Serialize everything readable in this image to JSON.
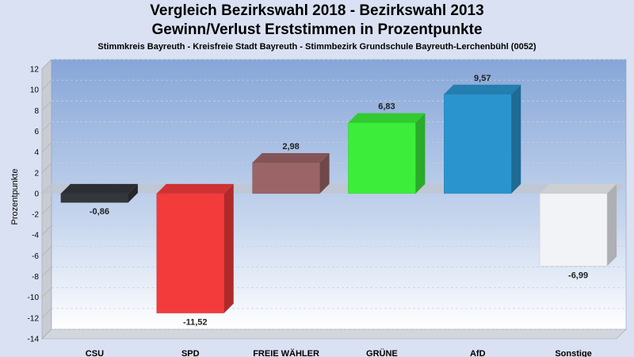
{
  "chart_data": {
    "type": "bar",
    "title": "Vergleich Bezirkswahl 2018 - Bezirkswahl 2013",
    "subtitle": "Gewinn/Verlust Erststimmen in Prozentpunkte",
    "subsubtitle": "Stimmkreis Bayreuth - Kreisfreie Stadt Bayreuth - Stimmbezirk Grundschule Bayreuth-Lerchenbühl (0052)",
    "ylabel": "Prozentpunkte",
    "xlabel": "",
    "ylim": [
      -14,
      12
    ],
    "yticks": [
      12,
      10,
      8,
      6,
      4,
      2,
      0,
      -2,
      -4,
      -6,
      -8,
      -10,
      -12,
      -14
    ],
    "categories": [
      "CSU",
      "SPD",
      "FREIE WÄHLER",
      "GRÜNE",
      "AfD",
      "Sonstige"
    ],
    "values": [
      -0.86,
      -11.52,
      2.98,
      6.83,
      9.57,
      -6.99
    ],
    "value_labels": [
      "-0,86",
      "-11,52",
      "2,98",
      "6,83",
      "9,57",
      "-6,99"
    ],
    "colors": [
      "#33363b",
      "#f43b3b",
      "#9b6467",
      "#3cee3a",
      "#2a94cf",
      "#f2f3f7"
    ],
    "grid": true,
    "legend": "none"
  }
}
